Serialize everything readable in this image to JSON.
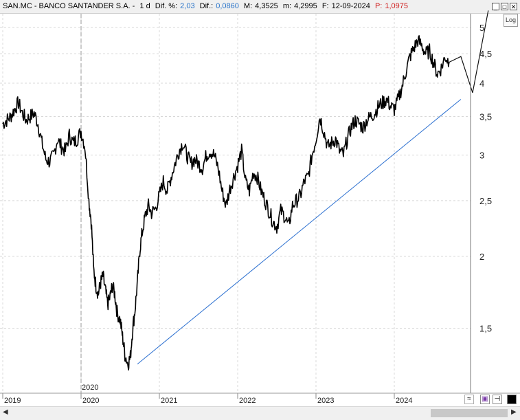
{
  "header": {
    "symbol": "SAN.MC - BANCO SANTANDER S.A. -",
    "period": "1 d",
    "dif_pct_label": "Dif. %:",
    "dif_pct_value": "2,03",
    "dif_label": "Dif.:",
    "dif_value": "0,0860",
    "max_label": "M:",
    "max_value": "4,3525",
    "min_label": "m:",
    "min_value": "4,2995",
    "date_label": "F:",
    "date_value": "12-09-2024",
    "p_label": "P:",
    "p_value": "1,0975"
  },
  "toolbar": {
    "log_label": "Log",
    "minimize_icon": "minimize-icon",
    "maximize_icon": "maximize-icon",
    "close_icon": "close-icon"
  },
  "colors": {
    "price": "#000000",
    "trendline": "#2a6fd0",
    "grid": "#d8d8d8",
    "header_blue": "#2a74c9",
    "header_red": "#d01f1f"
  },
  "chart_data": {
    "type": "line",
    "title": "SAN.MC - BANCO SANTANDER S.A.",
    "xlabel": "",
    "ylabel": "",
    "y_scale": "log",
    "ylim": [
      1.25,
      5.2
    ],
    "xlim": [
      2019.0,
      2025.0
    ],
    "y_ticks": [
      "5",
      "4,5",
      "4",
      "3,5",
      "3",
      "2,5",
      "2",
      "1,5"
    ],
    "y_tick_values": [
      5,
      4.5,
      4,
      3.5,
      3,
      2.5,
      2,
      1.5
    ],
    "x_ticks": [
      "2019",
      "2020",
      "2021",
      "2022",
      "2023",
      "2024"
    ],
    "x_tick_values": [
      2019,
      2020,
      2021,
      2022,
      2023,
      2024
    ],
    "vertical_marker": {
      "label": "2020",
      "x": 2020.0
    },
    "grid": true,
    "series": [
      {
        "x": [
          2019.0,
          2019.05,
          2019.1,
          2019.15,
          2019.2,
          2019.25,
          2019.3,
          2019.35,
          2019.4,
          2019.45,
          2019.5,
          2019.55,
          2019.6,
          2019.65,
          2019.7,
          2019.75,
          2019.8,
          2019.85,
          2019.9,
          2019.95,
          2020.0,
          2020.05,
          2020.1,
          2020.13,
          2020.16,
          2020.19,
          2020.22,
          2020.25,
          2020.28,
          2020.31,
          2020.34,
          2020.37,
          2020.4,
          2020.43,
          2020.46,
          2020.5,
          2020.53,
          2020.56,
          2020.6,
          2020.63,
          2020.66,
          2020.69,
          2020.72,
          2020.75,
          2020.78,
          2020.82,
          2020.86,
          2020.9,
          2020.95,
          2021.0,
          2021.05,
          2021.1,
          2021.15,
          2021.2,
          2021.25,
          2021.3,
          2021.35,
          2021.4,
          2021.45,
          2021.5,
          2021.55,
          2021.6,
          2021.65,
          2021.7,
          2021.75,
          2021.8,
          2021.85,
          2021.9,
          2021.95,
          2022.0,
          2022.05,
          2022.1,
          2022.15,
          2022.2,
          2022.25,
          2022.3,
          2022.35,
          2022.4,
          2022.45,
          2022.5,
          2022.55,
          2022.6,
          2022.65,
          2022.7,
          2022.75,
          2022.8,
          2022.85,
          2022.9,
          2022.95,
          2023.0,
          2023.05,
          2023.1,
          2023.15,
          2023.2,
          2023.25,
          2023.3,
          2023.35,
          2023.4,
          2023.45,
          2023.5,
          2023.55,
          2023.6,
          2023.65,
          2023.7,
          2023.75,
          2023.8,
          2023.85,
          2023.9,
          2023.95,
          2024.0,
          2024.05,
          2024.1,
          2024.15,
          2024.2,
          2024.25,
          2024.3,
          2024.35,
          2024.4,
          2024.45,
          2024.5,
          2024.55,
          2024.6,
          2024.65,
          2024.7
        ],
        "values": [
          3.4,
          3.45,
          3.5,
          3.6,
          3.7,
          3.55,
          3.45,
          3.5,
          3.55,
          3.4,
          3.15,
          2.95,
          2.92,
          3.0,
          3.2,
          3.1,
          3.05,
          3.25,
          3.15,
          3.2,
          3.3,
          3.1,
          2.5,
          2.3,
          1.9,
          1.78,
          1.72,
          1.8,
          1.85,
          1.75,
          1.65,
          1.7,
          1.78,
          1.72,
          1.6,
          1.55,
          1.45,
          1.35,
          1.3,
          1.34,
          1.5,
          1.62,
          1.8,
          2.05,
          2.2,
          2.35,
          2.45,
          2.38,
          2.42,
          2.55,
          2.7,
          2.6,
          2.75,
          2.9,
          3.05,
          3.15,
          3.0,
          2.9,
          2.95,
          2.9,
          2.85,
          3.0,
          3.05,
          3.0,
          2.85,
          2.6,
          2.45,
          2.62,
          2.75,
          2.88,
          3.05,
          2.7,
          2.6,
          2.8,
          2.75,
          2.6,
          2.5,
          2.4,
          2.3,
          2.25,
          2.4,
          2.35,
          2.25,
          2.45,
          2.5,
          2.55,
          2.7,
          2.75,
          3.0,
          3.2,
          3.5,
          3.3,
          3.1,
          3.15,
          3.2,
          3.05,
          3.0,
          3.2,
          3.35,
          3.45,
          3.4,
          3.35,
          3.45,
          3.5,
          3.55,
          3.65,
          3.7,
          3.75,
          3.65,
          3.6,
          3.75,
          3.95,
          4.2,
          4.45,
          4.6,
          4.75,
          4.65,
          4.5,
          4.55,
          4.35,
          4.15,
          4.25,
          4.45,
          4.35
        ]
      }
    ],
    "annotations": [
      {
        "type": "trendline",
        "from": [
          2020.72,
          1.3
        ],
        "to": [
          2024.85,
          3.75
        ]
      },
      {
        "type": "projection",
        "points": [
          [
            2024.7,
            4.35
          ],
          [
            2024.85,
            4.45
          ],
          [
            2025.0,
            3.85
          ],
          [
            2025.2,
            5.35
          ]
        ]
      }
    ]
  }
}
